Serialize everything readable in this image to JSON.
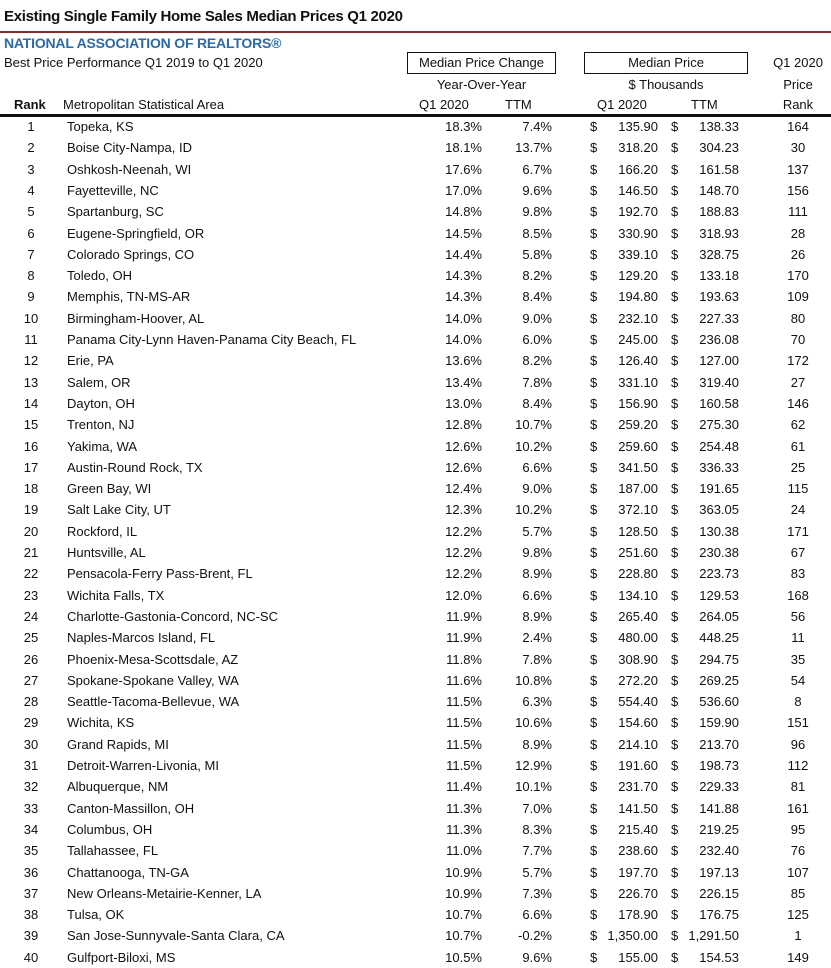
{
  "title": "Existing Single Family Home Sales Median Prices Q1 2020",
  "organization": "NATIONAL ASSOCIATION OF REALTORS®",
  "subtitle": "Best Price Performance Q1 2019 to Q1 2020",
  "header": {
    "box_change": "Median Price Change",
    "box_price": "Median Price",
    "q1_2020_top": "Q1 2020",
    "yoy": "Year-Over-Year",
    "thousands": "$ Thousands",
    "price": "Price",
    "rank": "Rank",
    "msa": "Metropolitan Statistical Area",
    "change_q1": "Q1 2020",
    "change_ttm": "TTM",
    "price_q1": "Q1 2020",
    "price_ttm": "TTM",
    "price_rank": "Rank"
  },
  "currency_symbol": "$",
  "rows": [
    {
      "rank": "1",
      "area": "Topeka, KS",
      "chg_q1": "18.3%",
      "chg_ttm": "7.4%",
      "price_q1": "135.90",
      "price_ttm": "138.33",
      "price_rank": "164"
    },
    {
      "rank": "2",
      "area": "Boise City-Nampa, ID",
      "chg_q1": "18.1%",
      "chg_ttm": "13.7%",
      "price_q1": "318.20",
      "price_ttm": "304.23",
      "price_rank": "30"
    },
    {
      "rank": "3",
      "area": "Oshkosh-Neenah, WI",
      "chg_q1": "17.6%",
      "chg_ttm": "6.7%",
      "price_q1": "166.20",
      "price_ttm": "161.58",
      "price_rank": "137"
    },
    {
      "rank": "4",
      "area": "Fayetteville, NC",
      "chg_q1": "17.0%",
      "chg_ttm": "9.6%",
      "price_q1": "146.50",
      "price_ttm": "148.70",
      "price_rank": "156"
    },
    {
      "rank": "5",
      "area": "Spartanburg, SC",
      "chg_q1": "14.8%",
      "chg_ttm": "9.8%",
      "price_q1": "192.70",
      "price_ttm": "188.83",
      "price_rank": "111"
    },
    {
      "rank": "6",
      "area": "Eugene-Springfield, OR",
      "chg_q1": "14.5%",
      "chg_ttm": "8.5%",
      "price_q1": "330.90",
      "price_ttm": "318.93",
      "price_rank": "28"
    },
    {
      "rank": "7",
      "area": "Colorado Springs, CO",
      "chg_q1": "14.4%",
      "chg_ttm": "5.8%",
      "price_q1": "339.10",
      "price_ttm": "328.75",
      "price_rank": "26"
    },
    {
      "rank": "8",
      "area": "Toledo, OH",
      "chg_q1": "14.3%",
      "chg_ttm": "8.2%",
      "price_q1": "129.20",
      "price_ttm": "133.18",
      "price_rank": "170"
    },
    {
      "rank": "9",
      "area": "Memphis, TN-MS-AR",
      "chg_q1": "14.3%",
      "chg_ttm": "8.4%",
      "price_q1": "194.80",
      "price_ttm": "193.63",
      "price_rank": "109"
    },
    {
      "rank": "10",
      "area": "Birmingham-Hoover, AL",
      "chg_q1": "14.0%",
      "chg_ttm": "9.0%",
      "price_q1": "232.10",
      "price_ttm": "227.33",
      "price_rank": "80"
    },
    {
      "rank": "11",
      "area": "Panama City-Lynn Haven-Panama City Beach, FL",
      "chg_q1": "14.0%",
      "chg_ttm": "6.0%",
      "price_q1": "245.00",
      "price_ttm": "236.08",
      "price_rank": "70"
    },
    {
      "rank": "12",
      "area": "Erie, PA",
      "chg_q1": "13.6%",
      "chg_ttm": "8.2%",
      "price_q1": "126.40",
      "price_ttm": "127.00",
      "price_rank": "172"
    },
    {
      "rank": "13",
      "area": "Salem, OR",
      "chg_q1": "13.4%",
      "chg_ttm": "7.8%",
      "price_q1": "331.10",
      "price_ttm": "319.40",
      "price_rank": "27"
    },
    {
      "rank": "14",
      "area": "Dayton, OH",
      "chg_q1": "13.0%",
      "chg_ttm": "8.4%",
      "price_q1": "156.90",
      "price_ttm": "160.58",
      "price_rank": "146"
    },
    {
      "rank": "15",
      "area": "Trenton, NJ",
      "chg_q1": "12.8%",
      "chg_ttm": "10.7%",
      "price_q1": "259.20",
      "price_ttm": "275.30",
      "price_rank": "62"
    },
    {
      "rank": "16",
      "area": "Yakima, WA",
      "chg_q1": "12.6%",
      "chg_ttm": "10.2%",
      "price_q1": "259.60",
      "price_ttm": "254.48",
      "price_rank": "61"
    },
    {
      "rank": "17",
      "area": "Austin-Round Rock, TX",
      "chg_q1": "12.6%",
      "chg_ttm": "6.6%",
      "price_q1": "341.50",
      "price_ttm": "336.33",
      "price_rank": "25"
    },
    {
      "rank": "18",
      "area": "Green Bay, WI",
      "chg_q1": "12.4%",
      "chg_ttm": "9.0%",
      "price_q1": "187.00",
      "price_ttm": "191.65",
      "price_rank": "115"
    },
    {
      "rank": "19",
      "area": "Salt Lake City, UT",
      "chg_q1": "12.3%",
      "chg_ttm": "10.2%",
      "price_q1": "372.10",
      "price_ttm": "363.05",
      "price_rank": "24"
    },
    {
      "rank": "20",
      "area": "Rockford, IL",
      "chg_q1": "12.2%",
      "chg_ttm": "5.7%",
      "price_q1": "128.50",
      "price_ttm": "130.38",
      "price_rank": "171"
    },
    {
      "rank": "21",
      "area": "Huntsville, AL",
      "chg_q1": "12.2%",
      "chg_ttm": "9.8%",
      "price_q1": "251.60",
      "price_ttm": "230.38",
      "price_rank": "67"
    },
    {
      "rank": "22",
      "area": "Pensacola-Ferry Pass-Brent, FL",
      "chg_q1": "12.2%",
      "chg_ttm": "8.9%",
      "price_q1": "228.80",
      "price_ttm": "223.73",
      "price_rank": "83"
    },
    {
      "rank": "23",
      "area": "Wichita Falls, TX",
      "chg_q1": "12.0%",
      "chg_ttm": "6.6%",
      "price_q1": "134.10",
      "price_ttm": "129.53",
      "price_rank": "168"
    },
    {
      "rank": "24",
      "area": "Charlotte-Gastonia-Concord, NC-SC",
      "chg_q1": "11.9%",
      "chg_ttm": "8.9%",
      "price_q1": "265.40",
      "price_ttm": "264.05",
      "price_rank": "56"
    },
    {
      "rank": "25",
      "area": "Naples-Marcos Island, FL",
      "chg_q1": "11.9%",
      "chg_ttm": "2.4%",
      "price_q1": "480.00",
      "price_ttm": "448.25",
      "price_rank": "11"
    },
    {
      "rank": "26",
      "area": "Phoenix-Mesa-Scottsdale, AZ",
      "chg_q1": "11.8%",
      "chg_ttm": "7.8%",
      "price_q1": "308.90",
      "price_ttm": "294.75",
      "price_rank": "35"
    },
    {
      "rank": "27",
      "area": "Spokane-Spokane Valley, WA",
      "chg_q1": "11.6%",
      "chg_ttm": "10.8%",
      "price_q1": "272.20",
      "price_ttm": "269.25",
      "price_rank": "54"
    },
    {
      "rank": "28",
      "area": "Seattle-Tacoma-Bellevue, WA",
      "chg_q1": "11.5%",
      "chg_ttm": "6.3%",
      "price_q1": "554.40",
      "price_ttm": "536.60",
      "price_rank": "8"
    },
    {
      "rank": "29",
      "area": "Wichita, KS",
      "chg_q1": "11.5%",
      "chg_ttm": "10.6%",
      "price_q1": "154.60",
      "price_ttm": "159.90",
      "price_rank": "151"
    },
    {
      "rank": "30",
      "area": "Grand Rapids, MI",
      "chg_q1": "11.5%",
      "chg_ttm": "8.9%",
      "price_q1": "214.10",
      "price_ttm": "213.70",
      "price_rank": "96"
    },
    {
      "rank": "31",
      "area": "Detroit-Warren-Livonia, MI",
      "chg_q1": "11.5%",
      "chg_ttm": "12.9%",
      "price_q1": "191.60",
      "price_ttm": "198.73",
      "price_rank": "112"
    },
    {
      "rank": "32",
      "area": "Albuquerque, NM",
      "chg_q1": "11.4%",
      "chg_ttm": "10.1%",
      "price_q1": "231.70",
      "price_ttm": "229.33",
      "price_rank": "81"
    },
    {
      "rank": "33",
      "area": "Canton-Massillon, OH",
      "chg_q1": "11.3%",
      "chg_ttm": "7.0%",
      "price_q1": "141.50",
      "price_ttm": "141.88",
      "price_rank": "161"
    },
    {
      "rank": "34",
      "area": "Columbus, OH",
      "chg_q1": "11.3%",
      "chg_ttm": "8.3%",
      "price_q1": "215.40",
      "price_ttm": "219.25",
      "price_rank": "95"
    },
    {
      "rank": "35",
      "area": "Tallahassee, FL",
      "chg_q1": "11.0%",
      "chg_ttm": "7.7%",
      "price_q1": "238.60",
      "price_ttm": "232.40",
      "price_rank": "76"
    },
    {
      "rank": "36",
      "area": "Chattanooga, TN-GA",
      "chg_q1": "10.9%",
      "chg_ttm": "5.7%",
      "price_q1": "197.70",
      "price_ttm": "197.13",
      "price_rank": "107"
    },
    {
      "rank": "37",
      "area": "New Orleans-Metairie-Kenner, LA",
      "chg_q1": "10.9%",
      "chg_ttm": "7.3%",
      "price_q1": "226.70",
      "price_ttm": "226.15",
      "price_rank": "85"
    },
    {
      "rank": "38",
      "area": "Tulsa, OK",
      "chg_q1": "10.7%",
      "chg_ttm": "6.6%",
      "price_q1": "178.90",
      "price_ttm": "176.75",
      "price_rank": "125"
    },
    {
      "rank": "39",
      "area": "San Jose-Sunnyvale-Santa Clara, CA",
      "chg_q1": "10.7%",
      "chg_ttm": "-0.2%",
      "price_q1": "1,350.00",
      "price_ttm": "1,291.50",
      "price_rank": "1"
    },
    {
      "rank": "40",
      "area": "Gulfport-Biloxi, MS",
      "chg_q1": "10.5%",
      "chg_ttm": "9.6%",
      "price_q1": "155.00",
      "price_ttm": "154.53",
      "price_rank": "149"
    }
  ],
  "colors": {
    "brand_blue": "#2d6aa3",
    "title_rule": "#8b2a2a"
  }
}
